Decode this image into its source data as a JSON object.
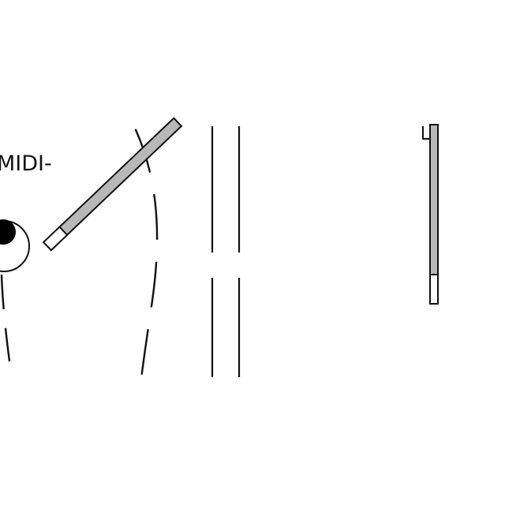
{
  "diagram": {
    "labels": {
      "midi": "MIDI-"
    },
    "colors": {
      "stroke": "#111111",
      "fill_gray": "#b8b8b8",
      "fill_black": "#000000",
      "background": "#ffffff"
    }
  }
}
